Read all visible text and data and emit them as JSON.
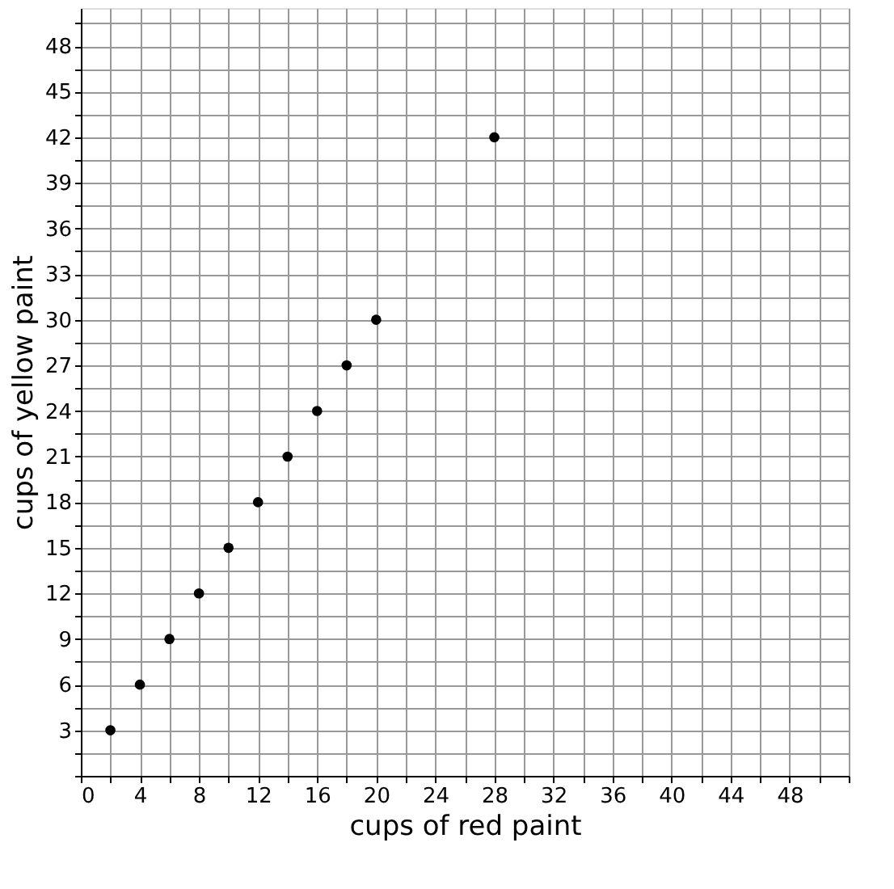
{
  "chart_data": {
    "type": "scatter",
    "xlabel": "cups of red paint",
    "ylabel": "cups of yellow paint",
    "x": [
      2,
      4,
      6,
      8,
      10,
      12,
      14,
      16,
      18,
      20,
      28
    ],
    "series": [
      {
        "color": "#000000",
        "values": [
          3,
          6,
          9,
          12,
          15,
          18,
          21,
          24,
          27,
          30,
          42
        ]
      }
    ],
    "marker": "circle",
    "grid": true,
    "xlim": [
      0,
      52
    ],
    "ylim": [
      0,
      50.5
    ],
    "xticks": [
      {
        "value": 0,
        "label": "0"
      },
      {
        "value": 2,
        "label": null
      },
      4,
      {
        "value": 6,
        "label": null
      },
      8,
      {
        "value": 10,
        "label": null
      },
      12,
      {
        "value": 14,
        "label": null
      },
      16,
      {
        "value": 18,
        "label": null
      },
      20,
      {
        "value": 22,
        "label": null
      },
      24,
      {
        "value": 26,
        "label": null
      },
      28,
      {
        "value": 30,
        "label": null
      },
      32,
      {
        "value": 34,
        "label": null
      },
      36,
      {
        "value": 38,
        "label": null
      },
      40,
      {
        "value": 42,
        "label": null
      },
      44,
      {
        "value": 46,
        "label": null
      },
      48,
      {
        "value": 50,
        "label": null
      },
      {
        "value": 52,
        "label": null
      }
    ],
    "yticks": [
      {
        "value": 0,
        "label": null
      },
      {
        "value": 1.5,
        "label": null
      },
      3,
      {
        "value": 4.5,
        "label": null
      },
      6,
      {
        "value": 7.5,
        "label": null
      },
      9,
      {
        "value": 10.5,
        "label": null
      },
      12,
      {
        "value": 13.5,
        "label": null
      },
      15,
      {
        "value": 16.5,
        "label": null
      },
      18,
      {
        "value": 19.5,
        "label": null
      },
      21,
      {
        "value": 22.5,
        "label": null
      },
      24,
      {
        "value": 25.5,
        "label": null
      },
      27,
      {
        "value": 28.5,
        "label": null
      },
      30,
      {
        "value": 31.5,
        "label": null
      },
      33,
      {
        "value": 34.5,
        "label": null
      },
      36,
      {
        "value": 37.5,
        "label": null
      },
      39,
      {
        "value": 40.5,
        "label": null
      },
      42,
      {
        "value": 43.5,
        "label": null
      },
      45,
      {
        "value": 46.5,
        "label": null
      },
      48,
      {
        "value": 49.5,
        "label": null
      }
    ]
  }
}
